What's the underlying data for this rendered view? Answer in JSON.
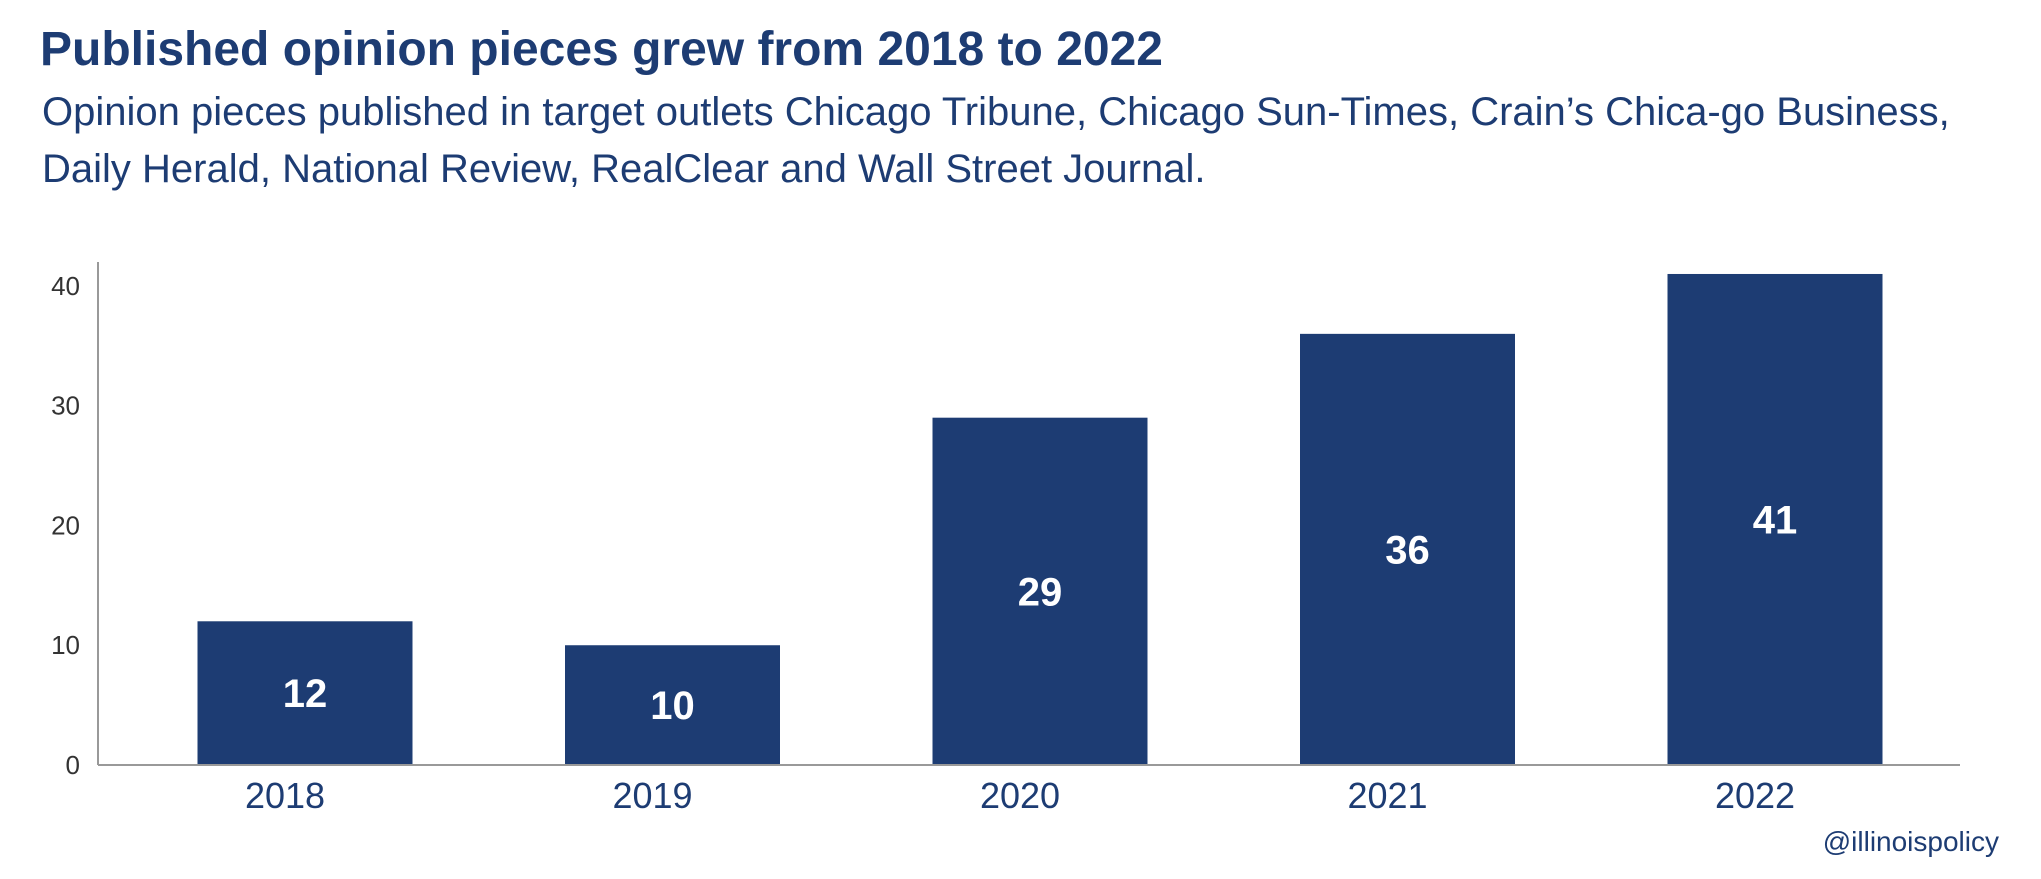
{
  "chart_data": {
    "type": "bar",
    "title": "Published opinion pieces grew from 2018 to 2022",
    "subtitle": "Opinion pieces published in target outlets Chicago Tribune, Chicago Sun-Times, Crain’s Chica-go Business, Daily Herald, National Review, RealClear and Wall Street Journal.",
    "categories": [
      "2018",
      "2019",
      "2020",
      "2021",
      "2022"
    ],
    "values": [
      12,
      10,
      29,
      36,
      41
    ],
    "data_labels": [
      "12",
      "10",
      "29",
      "36",
      "41"
    ],
    "xlabel": "",
    "ylabel": "",
    "ylim": [
      0,
      42
    ],
    "yticks": [
      0,
      10,
      20,
      30,
      40
    ],
    "grid": false,
    "bar_color": "#1d3c73",
    "label_color": "#ffffff",
    "axis_color": "#999999"
  },
  "credit": "@illinoispolicy"
}
